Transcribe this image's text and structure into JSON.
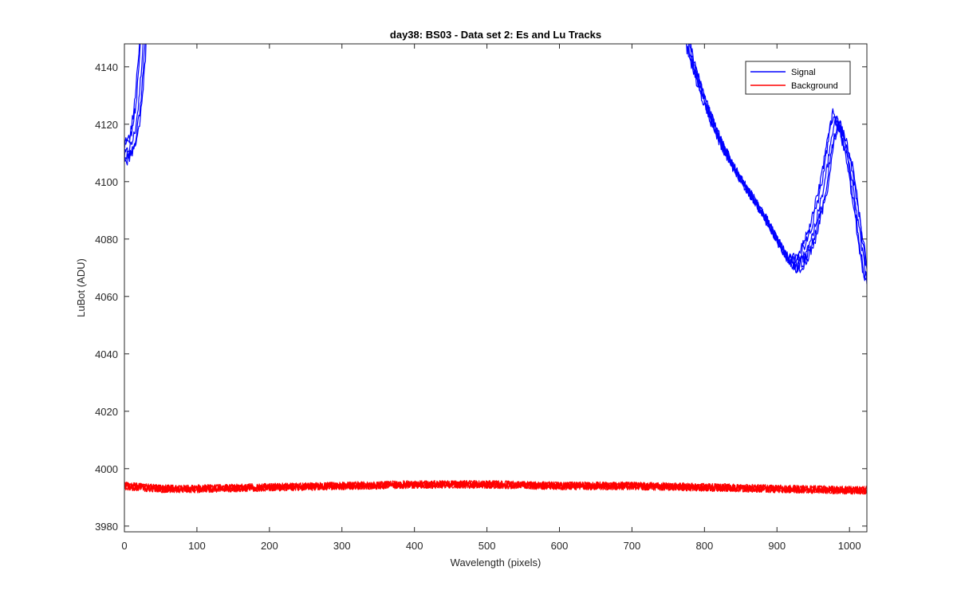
{
  "chart_data": {
    "type": "line",
    "title": "day38: BS03 - Data set 2: Es and Lu Tracks",
    "xlabel": "Wavelength (pixels)",
    "ylabel": "LuBot (ADU)",
    "xlim": [
      0,
      1024
    ],
    "ylim": [
      3978,
      4148
    ],
    "x_ticks": [
      0,
      100,
      200,
      300,
      400,
      500,
      600,
      700,
      800,
      900,
      1000
    ],
    "y_ticks": [
      3980,
      4000,
      4020,
      4040,
      4060,
      4080,
      4100,
      4120,
      4140
    ],
    "grid": false,
    "legend_location": "top-right",
    "legend": [
      "Signal",
      "Background"
    ],
    "series": [
      {
        "name": "Signal",
        "color": "#0000ff",
        "traces": 5,
        "noise": 1.8,
        "trace_offsets": [
          0,
          4,
          -3,
          6,
          -5
        ],
        "anchor_points": [
          [
            0,
            4109
          ],
          [
            5,
            4111
          ],
          [
            10,
            4113
          ],
          [
            15,
            4118
          ],
          [
            20,
            4128
          ],
          [
            25,
            4145
          ],
          [
            28,
            4160
          ],
          [
            770,
            4160
          ],
          [
            780,
            4145
          ],
          [
            800,
            4128
          ],
          [
            820,
            4115
          ],
          [
            840,
            4105
          ],
          [
            860,
            4097
          ],
          [
            880,
            4089
          ],
          [
            900,
            4080
          ],
          [
            915,
            4073
          ],
          [
            925,
            4071
          ],
          [
            935,
            4073
          ],
          [
            950,
            4082
          ],
          [
            965,
            4098
          ],
          [
            975,
            4115
          ],
          [
            982,
            4122
          ],
          [
            990,
            4117
          ],
          [
            1000,
            4107
          ],
          [
            1010,
            4090
          ],
          [
            1020,
            4072
          ],
          [
            1024,
            4066
          ]
        ]
      },
      {
        "name": "Background",
        "color": "#ff0000",
        "traces": 5,
        "noise": 1.4,
        "anchor_points": [
          [
            0,
            3994
          ],
          [
            50,
            3993
          ],
          [
            100,
            3993
          ],
          [
            200,
            3993.5
          ],
          [
            300,
            3994
          ],
          [
            400,
            3994.5
          ],
          [
            450,
            3994.5
          ],
          [
            500,
            3994.5
          ],
          [
            600,
            3994
          ],
          [
            700,
            3994
          ],
          [
            800,
            3993.5
          ],
          [
            900,
            3993
          ],
          [
            1000,
            3992.5
          ],
          [
            1024,
            3992.5
          ]
        ]
      }
    ]
  }
}
